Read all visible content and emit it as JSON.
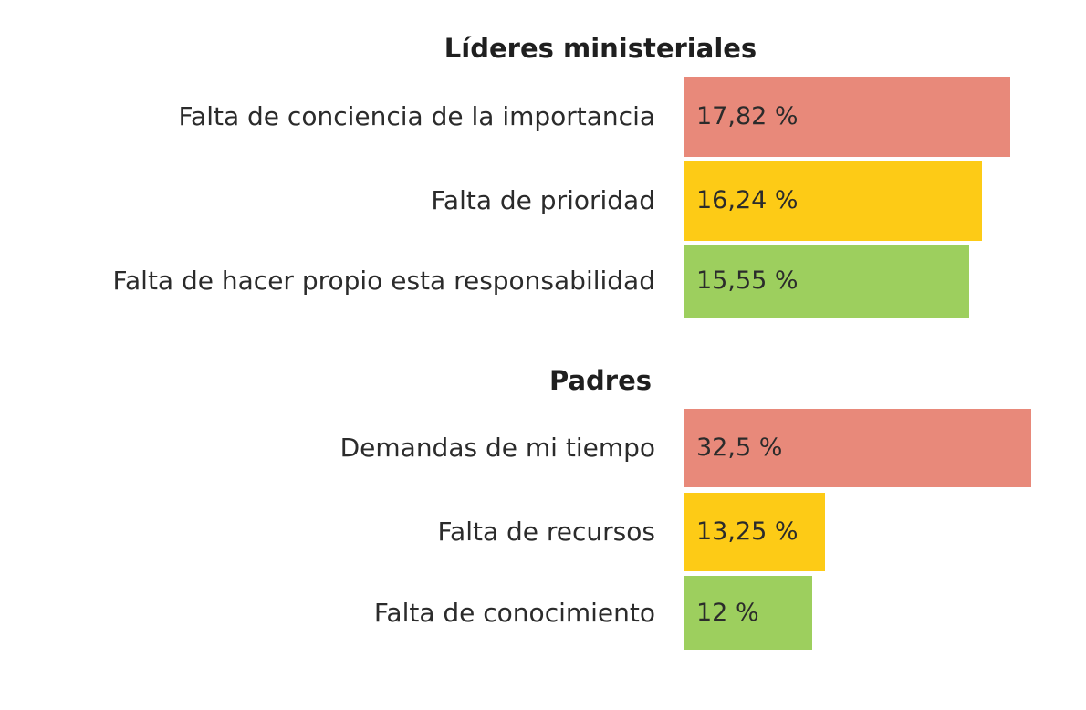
{
  "chart_data": {
    "type": "bar",
    "orientation": "horizontal",
    "xlim": [
      0,
      33
    ],
    "groups": [
      {
        "title": "Líderes ministeriales",
        "categories": [
          "Falta de conciencia de la importancia",
          "Falta de prioridad",
          "Falta de hacer propio esta responsabilidad"
        ],
        "values": [
          17.82,
          16.24,
          15.55
        ],
        "value_labels": [
          "17,82 %",
          "16,24 %",
          "15,55 %"
        ],
        "scale_max": 18.7
      },
      {
        "title": "Padres",
        "categories": [
          "Demandas de mi tiempo",
          "Falta de recursos",
          "Falta de conocimiento"
        ],
        "values": [
          32.5,
          13.25,
          12
        ],
        "value_labels": [
          "32,5 %",
          "13,25 %",
          "12 %"
        ],
        "scale_max": 32.5
      }
    ],
    "colors": [
      "#e8897a",
      "#fdcb16",
      "#9dcf5e"
    ]
  }
}
